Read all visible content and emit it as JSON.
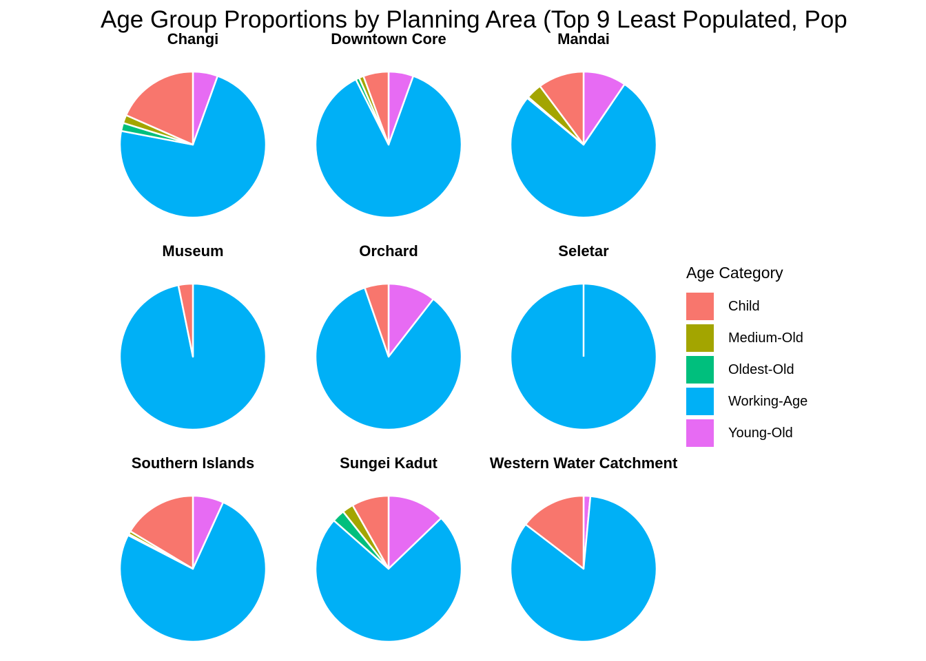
{
  "chart_data": {
    "type": "pie",
    "title": "Age Group Proportions by Planning Area (Top 9 Least Populated, Pop",
    "legend": {
      "title": "Age Category",
      "placement": "right",
      "categories": [
        "Child",
        "Medium-Old",
        "Oldest-Old",
        "Working-Age",
        "Young-Old"
      ]
    },
    "colors": {
      "Child": "#F8766D",
      "Medium-Old": "#A3A500",
      "Oldest-Old": "#00BF7D",
      "Working-Age": "#00B0F6",
      "Young-Old": "#E76BF3"
    },
    "facets": [
      {
        "label": "Changi",
        "values": {
          "Young-Old": 5.5,
          "Working-Age": 72.5,
          "Oldest-Old": 1.8,
          "Medium-Old": 1.8,
          "Child": 18.4
        }
      },
      {
        "label": "Downtown Core",
        "values": {
          "Young-Old": 5.5,
          "Working-Age": 87.1,
          "Oldest-Old": 0.8,
          "Medium-Old": 1.0,
          "Child": 5.6
        }
      },
      {
        "label": "Mandai",
        "values": {
          "Young-Old": 9.5,
          "Working-Age": 76.5,
          "Oldest-Old": 0.3,
          "Medium-Old": 3.5,
          "Child": 10.2
        }
      },
      {
        "label": "Museum",
        "values": {
          "Young-Old": 0.0,
          "Working-Age": 96.8,
          "Oldest-Old": 0.0,
          "Medium-Old": 0.0,
          "Child": 3.2
        }
      },
      {
        "label": "Orchard",
        "values": {
          "Young-Old": 10.5,
          "Working-Age": 84.2,
          "Oldest-Old": 0.0,
          "Medium-Old": 0.0,
          "Child": 5.3
        }
      },
      {
        "label": "Seletar",
        "values": {
          "Young-Old": 0.0,
          "Working-Age": 100.0,
          "Oldest-Old": 0.0,
          "Medium-Old": 0.0,
          "Child": 0.0
        }
      },
      {
        "label": "Southern Islands",
        "values": {
          "Young-Old": 6.8,
          "Working-Age": 75.8,
          "Oldest-Old": 0.3,
          "Medium-Old": 0.7,
          "Child": 16.4
        }
      },
      {
        "label": "Sungei Kadut",
        "values": {
          "Young-Old": 12.8,
          "Working-Age": 73.7,
          "Oldest-Old": 2.8,
          "Medium-Old": 2.5,
          "Child": 8.2
        }
      },
      {
        "label": "Western Water Catchment",
        "values": {
          "Young-Old": 1.5,
          "Working-Age": 83.9,
          "Oldest-Old": 0.0,
          "Medium-Old": 0.0,
          "Child": 14.6
        }
      }
    ]
  }
}
